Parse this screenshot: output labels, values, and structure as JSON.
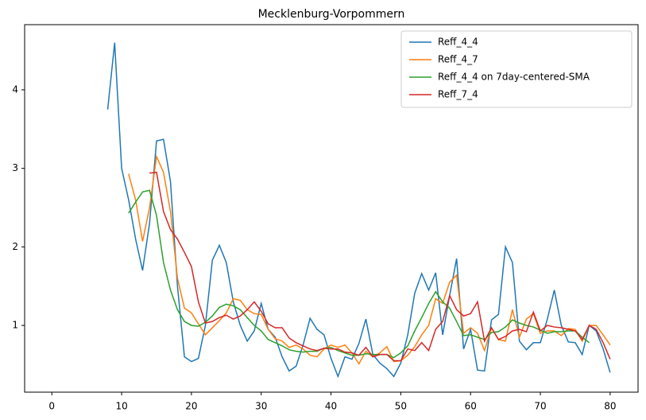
{
  "chart_data": {
    "type": "line",
    "title": "Mecklenburg-Vorpommern",
    "x": [
      8,
      9,
      10,
      11,
      12,
      13,
      14,
      15,
      16,
      17,
      18,
      19,
      20,
      21,
      22,
      23,
      24,
      25,
      26,
      27,
      28,
      29,
      30,
      31,
      32,
      33,
      34,
      35,
      36,
      37,
      38,
      39,
      40,
      41,
      42,
      43,
      44,
      45,
      46,
      47,
      48,
      49,
      50,
      51,
      52,
      53,
      54,
      55,
      56,
      57,
      58,
      59,
      60,
      61,
      62,
      63,
      64,
      65,
      66,
      67,
      68,
      69,
      70,
      71,
      72,
      73,
      74,
      75,
      76,
      77,
      78,
      79,
      80
    ],
    "series": [
      {
        "name": "Reff_4_4",
        "color": "#1f77b4",
        "values": [
          3.75,
          4.6,
          3.0,
          2.6,
          2.1,
          1.7,
          2.3,
          3.35,
          3.37,
          2.83,
          1.5,
          0.6,
          0.54,
          0.58,
          1.0,
          1.83,
          2.02,
          1.8,
          1.3,
          1.0,
          0.8,
          0.93,
          1.28,
          0.95,
          0.85,
          0.6,
          0.42,
          0.48,
          0.75,
          1.09,
          0.95,
          0.88,
          0.58,
          0.35,
          0.6,
          0.57,
          0.77,
          1.08,
          0.63,
          0.52,
          0.45,
          0.35,
          0.52,
          0.88,
          1.41,
          1.66,
          1.45,
          1.67,
          0.88,
          1.38,
          1.85,
          0.7,
          0.95,
          0.43,
          0.42,
          1.07,
          1.14,
          2.0,
          1.8,
          0.8,
          0.69,
          0.78,
          0.78,
          1.08,
          1.45,
          1.0,
          0.79,
          0.78,
          0.63,
          1.0,
          0.93,
          0.7,
          0.4
        ]
      },
      {
        "name": "Reff_4_7",
        "color": "#ff7f0e",
        "values": [
          null,
          null,
          null,
          2.93,
          2.6,
          2.07,
          2.5,
          3.15,
          2.95,
          2.45,
          1.6,
          1.22,
          1.16,
          1.02,
          0.88,
          0.97,
          1.06,
          1.16,
          1.34,
          1.32,
          1.2,
          1.15,
          1.14,
          0.95,
          0.83,
          0.8,
          0.72,
          0.75,
          0.7,
          0.62,
          0.6,
          0.7,
          0.75,
          0.72,
          0.75,
          0.65,
          0.51,
          0.67,
          0.6,
          0.65,
          0.73,
          0.54,
          0.55,
          0.62,
          0.73,
          0.88,
          1.0,
          1.34,
          1.28,
          1.55,
          1.64,
          0.9,
          0.97,
          0.9,
          0.68,
          0.97,
          0.82,
          0.8,
          1.2,
          0.85,
          1.08,
          1.15,
          0.9,
          0.93,
          0.93,
          0.87,
          0.96,
          0.95,
          0.8,
          1.0,
          1.0,
          0.88,
          0.75
        ]
      },
      {
        "name": "Reff_4_4 on 7day-centered-SMA",
        "color": "#2ca02c",
        "values": [
          null,
          null,
          null,
          2.43,
          2.57,
          2.7,
          2.72,
          2.4,
          1.8,
          1.45,
          1.2,
          1.05,
          1.0,
          0.99,
          1.04,
          1.12,
          1.23,
          1.27,
          1.25,
          1.2,
          1.1,
          1.0,
          0.93,
          0.82,
          0.78,
          0.74,
          0.69,
          0.67,
          0.66,
          0.67,
          0.67,
          0.71,
          0.72,
          0.68,
          0.65,
          0.62,
          0.62,
          0.64,
          0.63,
          0.63,
          0.63,
          0.59,
          0.65,
          0.74,
          0.93,
          1.1,
          1.28,
          1.43,
          1.3,
          1.22,
          1.05,
          0.87,
          0.88,
          0.85,
          0.82,
          0.91,
          0.92,
          0.98,
          1.07,
          1.03,
          1.0,
          0.98,
          0.94,
          0.9,
          0.92,
          0.92,
          0.93,
          0.93,
          0.85,
          0.78,
          null,
          null,
          null
        ]
      },
      {
        "name": "Reff_7_4",
        "color": "#d62728",
        "values": [
          null,
          null,
          null,
          null,
          null,
          null,
          2.94,
          2.95,
          2.45,
          2.22,
          2.1,
          1.93,
          1.75,
          1.3,
          1.03,
          1.05,
          1.1,
          1.13,
          1.08,
          1.12,
          1.2,
          1.3,
          1.18,
          1.02,
          0.97,
          0.97,
          0.84,
          0.78,
          0.74,
          0.7,
          0.68,
          0.71,
          0.7,
          0.7,
          0.66,
          0.65,
          0.62,
          0.72,
          0.6,
          0.63,
          0.63,
          0.55,
          0.55,
          0.7,
          0.68,
          0.78,
          0.68,
          0.95,
          1.05,
          1.38,
          1.2,
          1.12,
          1.15,
          1.3,
          0.8,
          0.97,
          0.82,
          0.86,
          0.93,
          0.95,
          0.92,
          1.17,
          0.93,
          1.0,
          0.98,
          0.97,
          0.95,
          0.93,
          0.82,
          1.0,
          0.95,
          0.78,
          0.57
        ]
      }
    ],
    "xlim": [
      -3.9,
      84
    ],
    "ylim": [
      0.15,
      4.83
    ],
    "xticks": [
      0,
      10,
      20,
      30,
      40,
      50,
      60,
      70,
      80
    ],
    "yticks": [
      1,
      2,
      3,
      4
    ],
    "grid": false,
    "legend": "upper right"
  }
}
